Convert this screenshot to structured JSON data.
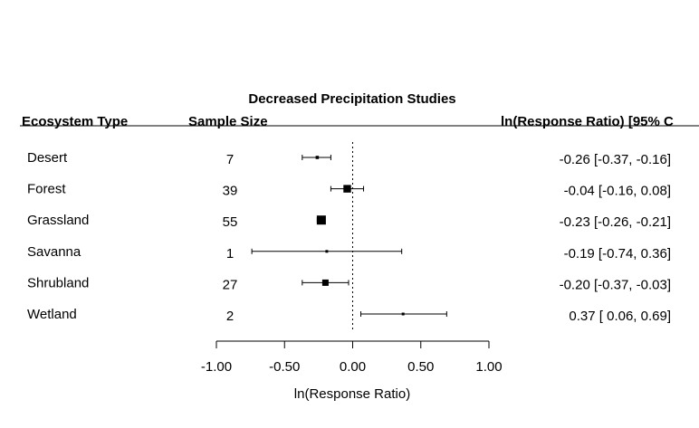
{
  "chart_data": {
    "type": "forest",
    "title": "Decreased Precipitation Studies",
    "headers": {
      "ecosystem": "Ecosystem Type",
      "sample_size": "Sample Size",
      "effect": "ln(Response Ratio) [95% C"
    },
    "xlabel": "ln(Response Ratio)",
    "xlim": [
      -1.0,
      1.0
    ],
    "ticks": [
      -1.0,
      -0.5,
      0.0,
      0.5,
      1.0
    ],
    "tick_labels": [
      "-1.00",
      "-0.50",
      "0.00",
      "0.50",
      "1.00"
    ],
    "reference_line": 0.0,
    "rows": [
      {
        "ecosystem": "Desert",
        "n": 7,
        "estimate": -0.26,
        "lower": -0.37,
        "upper": -0.16,
        "label": "-0.26 [-0.37, -0.16]"
      },
      {
        "ecosystem": "Forest",
        "n": 39,
        "estimate": -0.04,
        "lower": -0.16,
        "upper": 0.08,
        "label": "-0.04 [-0.16,  0.08]"
      },
      {
        "ecosystem": "Grassland",
        "n": 55,
        "estimate": -0.23,
        "lower": -0.26,
        "upper": -0.21,
        "label": "-0.23 [-0.26, -0.21]"
      },
      {
        "ecosystem": "Savanna",
        "n": 1,
        "estimate": -0.19,
        "lower": -0.74,
        "upper": 0.36,
        "label": "-0.19 [-0.74,  0.36]"
      },
      {
        "ecosystem": "Shrubland",
        "n": 27,
        "estimate": -0.2,
        "lower": -0.37,
        "upper": -0.03,
        "label": "-0.20 [-0.37, -0.03]"
      },
      {
        "ecosystem": "Wetland",
        "n": 2,
        "estimate": 0.37,
        "lower": 0.06,
        "upper": 0.69,
        "label": "0.37 [ 0.06,  0.69]"
      }
    ],
    "colors": {
      "ink": "#000000",
      "background": "#ffffff"
    }
  }
}
